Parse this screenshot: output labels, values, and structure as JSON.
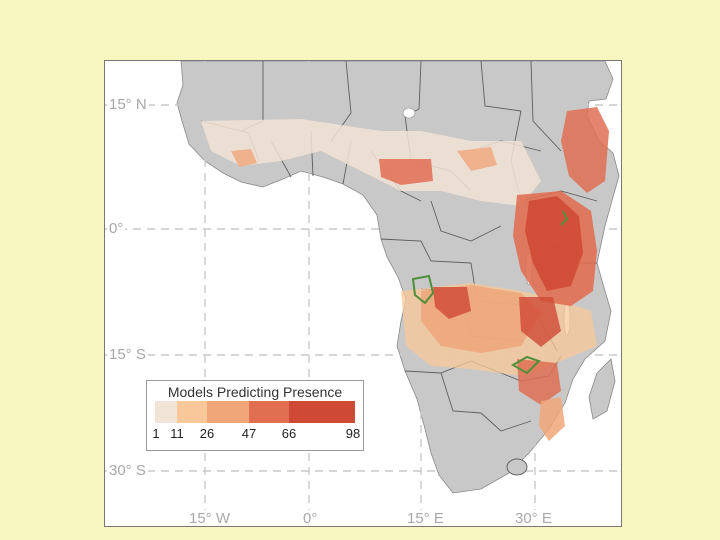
{
  "map": {
    "colors": {
      "page_background": "#f7f6c0",
      "ocean": "#ffffff",
      "land": "#c8c8c8",
      "country_borders": "#5e5e5e",
      "graticule": "#c9c9c9",
      "highlight_outline": "#4f8f3a",
      "lakes": "#ffffff"
    },
    "graticule": {
      "latitudes": [
        "15° N",
        "0°",
        "15° S",
        "30° S"
      ],
      "longitudes": [
        "15° W",
        "0°",
        "15° E",
        "30° E"
      ]
    }
  },
  "legend": {
    "title": "Models Predicting Presence",
    "classes": [
      {
        "min": 1,
        "max": 11,
        "color": "#f1e3d6"
      },
      {
        "min": 11,
        "max": 26,
        "color": "#f8c89a"
      },
      {
        "min": 26,
        "max": 47,
        "color": "#f0a679"
      },
      {
        "min": 47,
        "max": 66,
        "color": "#e06f52"
      },
      {
        "min": 66,
        "max": 98,
        "color": "#cf4a35"
      }
    ],
    "tick_labels": [
      "1",
      "11",
      "26",
      "47",
      "66",
      "98"
    ]
  }
}
